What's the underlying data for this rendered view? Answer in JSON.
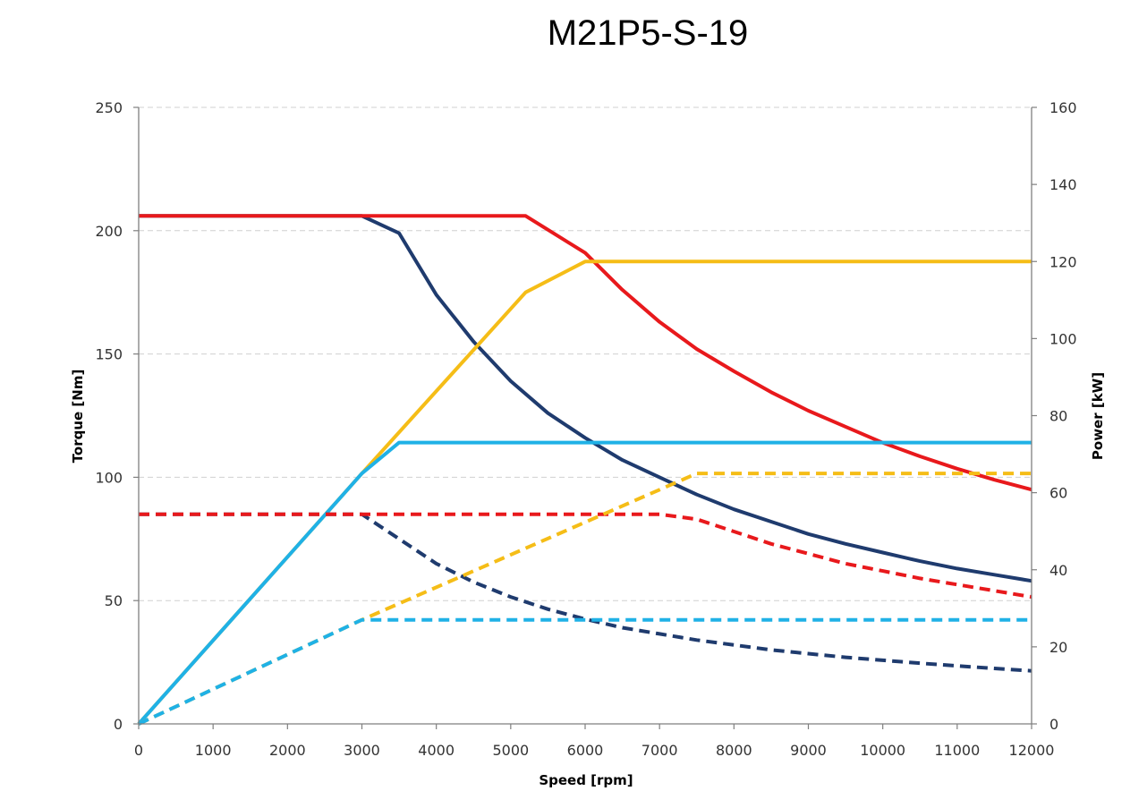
{
  "chart_data": {
    "type": "line",
    "title": "M21P5-S-19",
    "xlabel": "Speed [rpm]",
    "ylabel": "Torque [Nm]",
    "y2label": "Power [kW]",
    "xlim": [
      0,
      12000
    ],
    "ylim": [
      0,
      250
    ],
    "y2lim": [
      0,
      160
    ],
    "xticks": [
      0,
      1000,
      2000,
      3000,
      4000,
      5000,
      6000,
      7000,
      8000,
      9000,
      10000,
      11000,
      12000
    ],
    "yticks": [
      0,
      50,
      100,
      150,
      200,
      250
    ],
    "y2ticks": [
      0,
      20,
      40,
      60,
      80,
      100,
      120,
      140,
      160
    ],
    "grid": true,
    "colors": {
      "navy": "#1f3b6e",
      "red": "#e8191c",
      "yellow": "#f5bd17",
      "cyan": "#1fb1e6",
      "grid": "#d0d0d0",
      "axis": "#7f7f7f"
    },
    "series": [
      {
        "axis": "torque",
        "color": "navy",
        "dash": false,
        "points": [
          [
            0,
            206
          ],
          [
            3000,
            206
          ],
          [
            3500,
            199
          ],
          [
            4000,
            174
          ],
          [
            4500,
            155
          ],
          [
            5000,
            139
          ],
          [
            5500,
            126
          ],
          [
            6000,
            116
          ],
          [
            6500,
            107
          ],
          [
            7000,
            100
          ],
          [
            7500,
            93
          ],
          [
            8000,
            87
          ],
          [
            8500,
            82
          ],
          [
            9000,
            77
          ],
          [
            9500,
            73
          ],
          [
            10000,
            69.5
          ],
          [
            10500,
            66
          ],
          [
            11000,
            63
          ],
          [
            11500,
            60.5
          ],
          [
            12000,
            58
          ]
        ]
      },
      {
        "axis": "torque",
        "color": "red",
        "dash": false,
        "points": [
          [
            0,
            206
          ],
          [
            5200,
            206
          ],
          [
            6000,
            191
          ],
          [
            6500,
            176
          ],
          [
            7000,
            163
          ],
          [
            7500,
            152
          ],
          [
            8000,
            143
          ],
          [
            8500,
            134.5
          ],
          [
            9000,
            127
          ],
          [
            9500,
            120.5
          ],
          [
            10000,
            114
          ],
          [
            10500,
            108.5
          ],
          [
            11000,
            103.5
          ],
          [
            11500,
            99
          ],
          [
            12000,
            95
          ]
        ]
      },
      {
        "axis": "power",
        "color": "yellow",
        "dash": false,
        "points": [
          [
            0,
            0
          ],
          [
            3000,
            65
          ],
          [
            5200,
            112
          ],
          [
            6000,
            120
          ],
          [
            12000,
            120
          ]
        ]
      },
      {
        "axis": "power",
        "color": "cyan",
        "dash": false,
        "points": [
          [
            0,
            0
          ],
          [
            3000,
            65
          ],
          [
            3500,
            73
          ],
          [
            12000,
            73
          ]
        ]
      },
      {
        "axis": "torque",
        "color": "navy",
        "dash": true,
        "points": [
          [
            0,
            85
          ],
          [
            3000,
            85
          ],
          [
            3500,
            75
          ],
          [
            4000,
            65
          ],
          [
            4500,
            57.5
          ],
          [
            5000,
            51.5
          ],
          [
            5500,
            46.5
          ],
          [
            6000,
            42.5
          ],
          [
            6500,
            39
          ],
          [
            7000,
            36.5
          ],
          [
            7500,
            34
          ],
          [
            8000,
            32
          ],
          [
            8500,
            30
          ],
          [
            9000,
            28.5
          ],
          [
            9500,
            27
          ],
          [
            10000,
            25.8
          ],
          [
            10500,
            24.6
          ],
          [
            11000,
            23.5
          ],
          [
            11500,
            22.5
          ],
          [
            12000,
            21.5
          ]
        ]
      },
      {
        "axis": "torque",
        "color": "red",
        "dash": true,
        "points": [
          [
            0,
            85
          ],
          [
            7000,
            85
          ],
          [
            7500,
            83
          ],
          [
            8000,
            78
          ],
          [
            8500,
            73
          ],
          [
            9000,
            69
          ],
          [
            9500,
            65
          ],
          [
            10000,
            62
          ],
          [
            10500,
            59
          ],
          [
            11000,
            56.5
          ],
          [
            11500,
            54
          ],
          [
            12000,
            51.5
          ]
        ]
      },
      {
        "axis": "power",
        "color": "yellow",
        "dash": true,
        "points": [
          [
            0,
            0
          ],
          [
            3000,
            27
          ],
          [
            7500,
            65
          ],
          [
            12000,
            65
          ]
        ]
      },
      {
        "axis": "power",
        "color": "cyan",
        "dash": true,
        "points": [
          [
            0,
            0
          ],
          [
            3000,
            27
          ],
          [
            12000,
            27
          ]
        ]
      }
    ]
  }
}
